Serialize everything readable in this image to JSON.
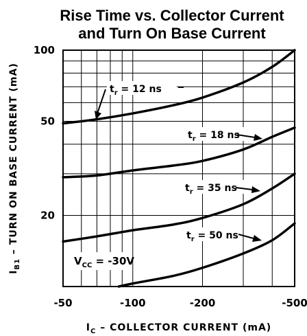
{
  "chart_data": {
    "type": "line",
    "title": [
      "Rise Time vs. Collector Current",
      "and Turn On Base Current"
    ],
    "xlabel": "I",
    "xlabel_sub": "C",
    "xlabel_rest": " – COLLECTOR CURRENT (mA)",
    "ylabel": "I",
    "ylabel_sub": "B1",
    "ylabel_rest": " – TURN ON BASE CURRENT (mA)",
    "x_scale": "log",
    "y_scale": "log",
    "xlim": [
      50,
      500
    ],
    "ylim": [
      10,
      100
    ],
    "x_ticks": [
      {
        "value": 50,
        "label": "-50"
      },
      {
        "value": 100,
        "label": "-100"
      },
      {
        "value": 200,
        "label": "-200"
      },
      {
        "value": 500,
        "label": "-500"
      }
    ],
    "y_ticks": [
      {
        "value": 100,
        "label": "100"
      },
      {
        "value": 50,
        "label": "50"
      },
      {
        "value": 20,
        "label": "20"
      }
    ],
    "grid": true,
    "series": [
      {
        "name": "tr = 12 ns",
        "x": [
          50,
          70,
          100,
          150,
          200,
          300,
          400,
          500
        ],
        "y": [
          49,
          51,
          54,
          58.5,
          63,
          73,
          85,
          100
        ]
      },
      {
        "name": "tr = 18 ns",
        "x": [
          50,
          70,
          100,
          150,
          200,
          300,
          400,
          500
        ],
        "y": [
          29,
          29.5,
          31,
          32.5,
          34,
          38,
          43,
          47
        ]
      },
      {
        "name": "tr = 35 ns",
        "x": [
          50,
          70,
          100,
          150,
          200,
          300,
          400,
          500
        ],
        "y": [
          15.5,
          16.3,
          17.3,
          18.3,
          19.5,
          22.3,
          26,
          30
        ]
      },
      {
        "name": "tr = 50 ns",
        "x": [
          87,
          100,
          150,
          200,
          300,
          400,
          500
        ],
        "y": [
          10,
          10.3,
          11.1,
          12,
          13.8,
          15.7,
          18.5
        ]
      }
    ],
    "annotations": [
      {
        "t": "t",
        "sub": "r",
        "rest": " = 12 ns"
      },
      {
        "t": "t",
        "sub": "r",
        "rest": " = 18 ns"
      },
      {
        "t": "t",
        "sub": "r",
        "rest": " = 35 ns"
      },
      {
        "t": "t",
        "sub": "r",
        "rest": " = 50 ns"
      }
    ],
    "condition": {
      "main": "V",
      "sub": "CC",
      "rest": " = -30V"
    }
  }
}
